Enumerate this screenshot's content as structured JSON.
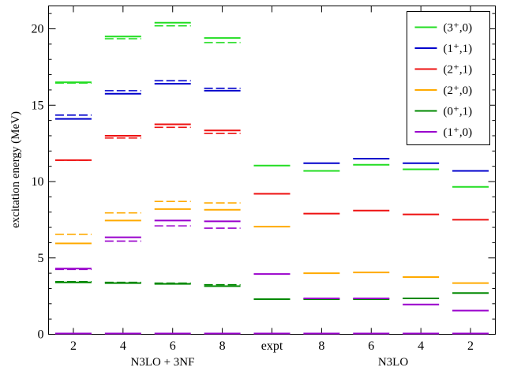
{
  "chart_data": {
    "type": "level-scheme",
    "ylabel": "excitation energy  (MeV)",
    "ylim": [
      0,
      21.5
    ],
    "yticks": [
      0,
      5,
      10,
      15,
      20
    ],
    "y_minor_step": 1,
    "grid": false,
    "legend_position": "top-right",
    "columns": [
      "2",
      "4",
      "6",
      "8",
      "expt",
      "8",
      "6",
      "4",
      "2"
    ],
    "groups": [
      {
        "label": "N3LO + 3NF",
        "columns": [
          0,
          1,
          2,
          3
        ]
      },
      {
        "label": "N3LO",
        "columns": [
          5,
          6,
          7,
          8
        ]
      }
    ],
    "series": [
      {
        "name": "(3⁺,0)",
        "color": "#22dd22",
        "solid": [
          16.5,
          19.5,
          20.4,
          19.4,
          11.05,
          10.7,
          11.1,
          10.8,
          9.65
        ],
        "dashed": [
          16.45,
          19.35,
          20.2,
          19.1,
          null,
          null,
          null,
          null,
          null
        ]
      },
      {
        "name": "(1⁺,1)",
        "color": "#0000cc",
        "solid": [
          14.1,
          15.75,
          16.4,
          15.95,
          null,
          11.2,
          11.5,
          11.2,
          10.7
        ],
        "dashed": [
          14.35,
          15.95,
          16.6,
          16.1,
          null,
          null,
          null,
          null,
          null
        ]
      },
      {
        "name": "(2⁺,1)",
        "color": "#ee1111",
        "solid": [
          11.4,
          13.0,
          13.75,
          13.35,
          9.2,
          7.9,
          8.1,
          7.85,
          7.5
        ],
        "dashed": [
          11.4,
          12.85,
          13.55,
          13.15,
          null,
          null,
          null,
          null,
          null
        ]
      },
      {
        "name": "(2⁺,0)",
        "color": "#ffaa00",
        "solid": [
          5.95,
          7.45,
          8.2,
          8.15,
          7.05,
          4.0,
          4.05,
          3.75,
          3.35
        ],
        "dashed": [
          6.55,
          7.95,
          8.7,
          8.6,
          null,
          null,
          null,
          null,
          null
        ]
      },
      {
        "name": "(0⁺,1)",
        "color": "#008800",
        "solid": [
          3.4,
          3.35,
          3.3,
          3.15,
          2.3,
          2.3,
          2.3,
          2.35,
          2.7
        ],
        "dashed": [
          3.45,
          3.4,
          3.35,
          3.25,
          null,
          null,
          null,
          null,
          null
        ]
      },
      {
        "name": "(1⁺,0)",
        "color": "#9900cc",
        "solid": [
          4.3,
          6.35,
          7.45,
          7.4,
          3.95,
          2.35,
          2.35,
          1.95,
          1.55
        ],
        "dashed": [
          4.25,
          6.1,
          7.1,
          6.95,
          null,
          null,
          null,
          null,
          null
        ]
      }
    ],
    "ground": {
      "value": 0,
      "color": "#9900cc"
    }
  }
}
